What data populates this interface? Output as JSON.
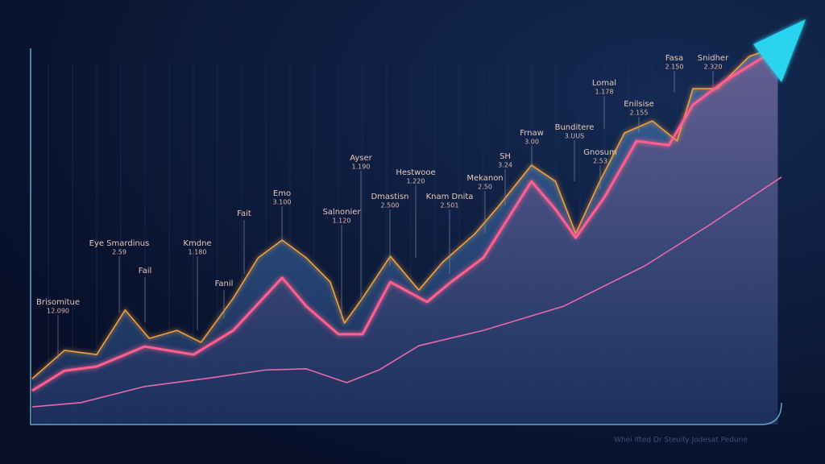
{
  "chart_data": {
    "type": "area",
    "xlim": [
      0,
      100
    ],
    "ylim": [
      0,
      100
    ],
    "series": [
      {
        "color": "#f2a03c",
        "x": [
          0.2,
          4.5,
          8.8,
          12.6,
          15.8,
          19.5,
          22.7,
          27.0,
          30.3,
          33.5,
          36.7,
          39.9,
          41.8,
          44.2,
          47.9,
          51.7,
          54.9,
          59.2,
          62.4,
          66.7,
          69.9,
          72.6,
          75.8,
          79.1,
          82.8,
          86.1,
          88.2,
          91.4,
          95.7,
          99.5
        ],
        "values": [
          11.9,
          19.3,
          18.2,
          29.8,
          22.4,
          24.5,
          21.4,
          32.9,
          43.4,
          48.0,
          43.4,
          37.1,
          26.4,
          32.9,
          43.8,
          35.0,
          42.3,
          49.7,
          57.0,
          67.5,
          63.3,
          49.7,
          63.3,
          75.9,
          79.0,
          73.8,
          87.4,
          87.4,
          95.8,
          98.3
        ]
      },
      {
        "color": "#ff5f8f",
        "x": [
          0.2,
          4.5,
          8.8,
          15.2,
          21.7,
          27.0,
          33.5,
          36.7,
          41.0,
          44.2,
          47.9,
          52.8,
          56.0,
          60.3,
          66.7,
          69.9,
          72.6,
          76.4,
          80.7,
          85.0,
          88.2,
          92.5,
          99.5
        ],
        "values": [
          8.8,
          14.0,
          15.1,
          20.3,
          18.2,
          24.5,
          38.2,
          30.8,
          23.5,
          23.5,
          37.1,
          31.9,
          37.1,
          43.4,
          63.3,
          56.0,
          48.6,
          59.1,
          73.8,
          72.7,
          83.2,
          89.5,
          97.9
        ]
      },
      {
        "color": "#e86aa8",
        "x": [
          0.2,
          6.7,
          15.2,
          23.8,
          31.3,
          36.7,
          42.1,
          46.4,
          51.7,
          60.3,
          71.0,
          81.8,
          90.3,
          100
        ],
        "values": [
          4.6,
          5.7,
          9.9,
          12.1,
          14.2,
          14.5,
          10.9,
          14.2,
          20.5,
          24.5,
          30.8,
          41.3,
          51.8,
          64.4
        ]
      }
    ],
    "annotations": [
      {
        "text": "Brisomitue",
        "sub": "12.090"
      },
      {
        "text": "Eye Smardinus",
        "sub": "2.59"
      },
      {
        "text": "Fail"
      },
      {
        "text": "Kmdne",
        "sub": "1.180"
      },
      {
        "text": "Fanil"
      },
      {
        "text": "Fait"
      },
      {
        "text": "Emo",
        "sub": "3.100"
      },
      {
        "text": "Ayser",
        "sub": "1.190"
      },
      {
        "text": "Salnonier",
        "sub": "1.120"
      },
      {
        "text": "Hestwooe",
        "sub": "1.220"
      },
      {
        "text": "Dmastisn",
        "sub": "2.500"
      },
      {
        "text": "Knam Dnita",
        "sub": "2.501"
      },
      {
        "text": "Mekanon",
        "sub": "2.50"
      },
      {
        "text": "SH",
        "sub": "3.24"
      },
      {
        "text": "Frnaw",
        "sub": "3.00"
      },
      {
        "text": "Bunditere",
        "sub": "3.UUS"
      },
      {
        "text": "Lomal",
        "sub": "1.178"
      },
      {
        "text": "Gnosum",
        "sub": "2.53"
      },
      {
        "text": "Enilsise",
        "sub": "2.155"
      },
      {
        "text": "Fasa",
        "sub": "2.150"
      },
      {
        "text": "Snidher",
        "sub": "2.320"
      }
    ],
    "footer": "Whei Ifted Dr Steuify Jodesat Pedune"
  }
}
